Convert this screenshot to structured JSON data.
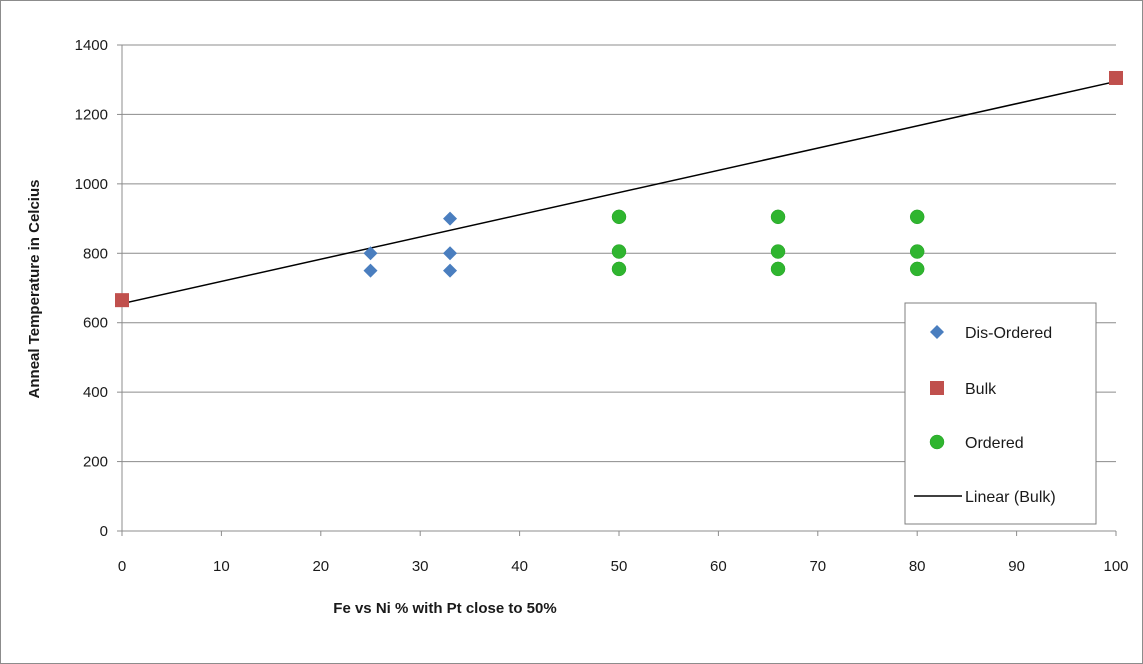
{
  "chart_data": {
    "type": "scatter",
    "title": "",
    "xlabel": "Fe vs Ni % with Pt close to 50%",
    "ylabel": "Anneal Temperature in Celcius",
    "xlim": [
      0,
      100
    ],
    "ylim": [
      0,
      1400
    ],
    "xticks": [
      0,
      10,
      20,
      30,
      40,
      50,
      60,
      70,
      80,
      90,
      100
    ],
    "yticks": [
      0,
      200,
      400,
      600,
      800,
      1000,
      1200,
      1400
    ],
    "grid": "horizontal",
    "legend_position": "right",
    "series": [
      {
        "name": "Dis-Ordered",
        "marker": "diamond",
        "color": "#4a7ebf",
        "points": [
          [
            25,
            750
          ],
          [
            25,
            800
          ],
          [
            33,
            750
          ],
          [
            33,
            800
          ],
          [
            33,
            900
          ]
        ]
      },
      {
        "name": "Bulk",
        "marker": "square",
        "color": "#c0504d",
        "points": [
          [
            0,
            665
          ],
          [
            100,
            1305
          ]
        ]
      },
      {
        "name": "Ordered",
        "marker": "circle",
        "color": "#2fb52f",
        "points": [
          [
            50,
            755
          ],
          [
            50,
            805
          ],
          [
            50,
            905
          ],
          [
            66,
            755
          ],
          [
            66,
            805
          ],
          [
            66,
            905
          ],
          [
            80,
            755
          ],
          [
            80,
            805
          ],
          [
            80,
            905
          ]
        ]
      }
    ],
    "trendline": {
      "name": "Linear (Bulk)",
      "color": "#000000",
      "from": [
        0,
        655
      ],
      "to": [
        100,
        1295
      ]
    }
  }
}
